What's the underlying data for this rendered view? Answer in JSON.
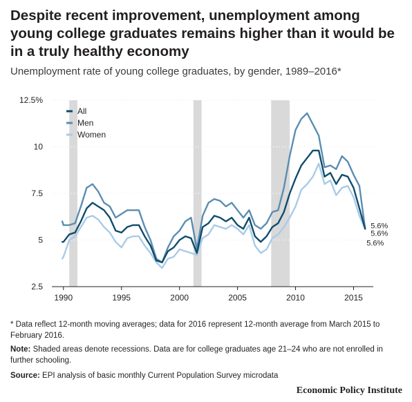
{
  "header": {
    "title": "Despite recent improvement, unemployment among young college graduates remains higher than it would be in a truly healthy economy",
    "subtitle": "Unemployment rate of young college graduates, by gender, 1989–2016*"
  },
  "notes": {
    "asterisk": "* Data reflect 12-month moving averages; data for 2016 represent 12-month average from March 2015 to February 2016.",
    "note_label": "Note:",
    "note_text": " Shaded areas denote recessions. Data are for college graduates age 21–24 who are not enrolled in further schooling.",
    "source_label": "Source:",
    "source_text": " EPI analysis of basic monthly Current Population Survey microdata"
  },
  "brand": "Economic Policy Institute",
  "chart_data": {
    "type": "line",
    "title": "Despite recent improvement, unemployment among young college graduates remains higher than it would be in a truly healthy economy",
    "subtitle": "Unemployment rate of young college graduates, by gender, 1989–2016*",
    "xlim": [
      1989.0,
      2016.7
    ],
    "ylim": [
      2.5,
      12.5
    ],
    "x_ticks": [
      1990,
      1995,
      2000,
      2005,
      2010,
      2015
    ],
    "x_tick_labels": [
      "1990",
      "1995",
      "2000",
      "2005",
      "2010",
      "2015"
    ],
    "y_ticks": [
      2.5,
      5,
      7.5,
      10,
      12.5
    ],
    "y_tick_labels": [
      "2.5",
      "5",
      "7.5",
      "10",
      "12.5%"
    ],
    "grid": true,
    "legend_position": "top-left",
    "recessions": [
      {
        "start": 1990.5,
        "end": 1991.2
      },
      {
        "start": 2001.2,
        "end": 2001.9
      },
      {
        "start": 2007.9,
        "end": 2009.5
      }
    ],
    "x": [
      1989.9,
      1990.0,
      1990.5,
      1991.0,
      1991.5,
      1992.0,
      1992.5,
      1993.0,
      1993.5,
      1994.0,
      1994.5,
      1995.0,
      1995.5,
      1996.0,
      1996.5,
      1997.0,
      1997.5,
      1998.0,
      1998.5,
      1999.0,
      1999.5,
      2000.0,
      2000.5,
      2001.0,
      2001.5,
      2002.0,
      2002.5,
      2003.0,
      2003.5,
      2004.0,
      2004.5,
      2005.0,
      2005.5,
      2006.0,
      2006.5,
      2007.0,
      2007.5,
      2008.0,
      2008.5,
      2009.0,
      2009.5,
      2010.0,
      2010.5,
      2011.0,
      2011.5,
      2012.0,
      2012.5,
      2013.0,
      2013.5,
      2014.0,
      2014.5,
      2015.0,
      2015.5,
      2016.0
    ],
    "series": [
      {
        "name": "All",
        "color": "#0f4c6c",
        "end_label": "5.6%",
        "values": [
          4.9,
          4.9,
          5.3,
          5.4,
          6.0,
          6.7,
          7.0,
          6.8,
          6.6,
          6.2,
          5.5,
          5.4,
          5.7,
          5.8,
          5.8,
          5.2,
          4.7,
          3.9,
          3.8,
          4.4,
          4.6,
          5.0,
          5.2,
          5.1,
          4.3,
          5.7,
          5.9,
          6.3,
          6.2,
          6.0,
          6.2,
          5.8,
          5.6,
          6.2,
          5.2,
          4.9,
          5.2,
          5.7,
          5.9,
          6.5,
          7.5,
          8.3,
          9.0,
          9.4,
          9.8,
          9.8,
          8.4,
          8.6,
          8.0,
          8.5,
          8.4,
          7.8,
          6.7,
          5.6
        ]
      },
      {
        "name": "Men",
        "color": "#5b8db1",
        "end_label": "5.6%",
        "values": [
          6.0,
          5.8,
          5.8,
          5.9,
          6.8,
          7.8,
          8.0,
          7.6,
          7.0,
          6.8,
          6.2,
          6.4,
          6.6,
          6.6,
          6.6,
          5.7,
          5.0,
          4.0,
          3.8,
          4.6,
          5.2,
          5.5,
          6.0,
          6.2,
          4.5,
          6.3,
          7.0,
          7.2,
          7.1,
          6.8,
          7.0,
          6.6,
          6.2,
          6.6,
          5.8,
          5.6,
          5.9,
          6.5,
          6.6,
          7.8,
          9.5,
          10.9,
          11.5,
          11.8,
          11.2,
          10.6,
          8.9,
          9.0,
          8.8,
          9.5,
          9.2,
          8.5,
          7.9,
          5.6
        ]
      },
      {
        "name": "Women",
        "color": "#a8cbe8",
        "end_label": "5.6%",
        "values": [
          4.0,
          4.1,
          5.0,
          5.2,
          5.7,
          6.2,
          6.3,
          6.1,
          5.7,
          5.4,
          4.9,
          4.6,
          5.1,
          5.2,
          5.2,
          4.7,
          4.3,
          3.8,
          3.5,
          4.0,
          4.1,
          4.5,
          4.4,
          4.3,
          4.2,
          5.1,
          5.3,
          5.8,
          5.7,
          5.6,
          5.8,
          5.6,
          5.3,
          5.8,
          4.7,
          4.3,
          4.5,
          5.1,
          5.3,
          5.7,
          6.2,
          6.8,
          7.7,
          8.0,
          8.4,
          9.1,
          8.0,
          8.2,
          7.4,
          7.8,
          7.9,
          7.3,
          6.3,
          5.6
        ]
      }
    ]
  }
}
